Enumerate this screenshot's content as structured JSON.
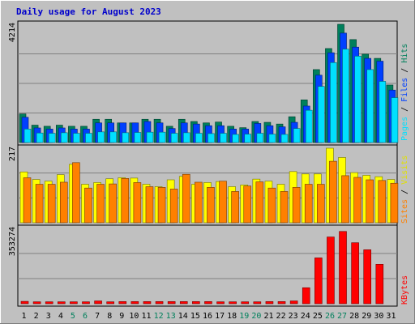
{
  "colors": {
    "background": "#c0c0c0",
    "title": "#0000cc",
    "hits": "#00805c",
    "files": "#0040ff",
    "pages": "#00e0ff",
    "visits": "#ffff00",
    "sites": "#ff8000",
    "kbytes": "#ff0000",
    "weekday": "#000000",
    "weekend": "#00805c"
  },
  "chart_data": {
    "type": "bar",
    "title": "Daily usage for August 2023",
    "categories": [
      "1",
      "2",
      "3",
      "4",
      "5",
      "6",
      "7",
      "8",
      "9",
      "10",
      "11",
      "12",
      "13",
      "14",
      "15",
      "16",
      "17",
      "18",
      "19",
      "20",
      "21",
      "22",
      "23",
      "24",
      "25",
      "26",
      "27",
      "28",
      "29",
      "30",
      "31"
    ],
    "weekend_days": [
      "5",
      "6",
      "12",
      "13",
      "19",
      "20",
      "26",
      "27"
    ],
    "panels": [
      {
        "id": "hits-files-pages",
        "max_label": "4214",
        "ylim": [
          0,
          4214
        ],
        "axis_labels": [
          "Pages",
          "Files",
          "Hits"
        ],
        "series": [
          {
            "name": "Hits",
            "values": [
              1020,
              620,
              580,
              620,
              580,
              580,
              830,
              830,
              700,
              700,
              830,
              830,
              580,
              830,
              750,
              700,
              730,
              580,
              530,
              750,
              720,
              660,
              920,
              1520,
              2600,
              3350,
              4214,
              3670,
              3150,
              3000,
              2050
            ]
          },
          {
            "name": "Files",
            "values": [
              900,
              520,
              480,
              520,
              480,
              480,
              700,
              700,
              700,
              700,
              750,
              700,
              500,
              700,
              660,
              600,
              600,
              480,
              480,
              680,
              600,
              560,
              720,
              1300,
              2400,
              3200,
              3900,
              3400,
              3000,
              2900,
              1870
            ]
          },
          {
            "name": "Pages",
            "values": [
              480,
              340,
              330,
              350,
              330,
              330,
              380,
              380,
              350,
              360,
              370,
              370,
              330,
              350,
              330,
              320,
              330,
              290,
              300,
              330,
              300,
              290,
              500,
              1150,
              2000,
              2850,
              3330,
              3080,
              2600,
              2180,
              1600
            ]
          }
        ]
      },
      {
        "id": "visits-sites",
        "max_label": "217",
        "ylim": [
          0,
          217
        ],
        "axis_labels": [
          "Sites",
          "Visits"
        ],
        "series": [
          {
            "name": "Visits",
            "values": [
              148,
              126,
              121,
              140,
              170,
              112,
              117,
              128,
              131,
              130,
              112,
              105,
              125,
              135,
              112,
              117,
              120,
              105,
              110,
              127,
              121,
              112,
              149,
              142,
              142,
              217,
              190,
              146,
              138,
              134,
              126
            ]
          },
          {
            "name": "Sites",
            "values": [
              131,
              112,
              112,
              118,
              175,
              101,
              112,
              113,
              129,
              117,
              105,
              103,
              98,
              141,
              118,
              103,
              121,
              91,
              107,
              119,
              101,
              91,
              103,
              112,
              112,
              179,
              137,
              132,
              125,
              123,
              115
            ]
          }
        ]
      },
      {
        "id": "kbytes",
        "max_label": "353274",
        "ylim": [
          0,
          353274
        ],
        "axis_labels": [
          "KBytes"
        ],
        "series": [
          {
            "name": "KBytes",
            "values": [
              11000,
              9000,
              9000,
              9000,
              9000,
              9000,
              13000,
              9000,
              10000,
              10000,
              10000,
              10000,
              10000,
              10000,
              10000,
              10000,
              9000,
              9000,
              9000,
              9000,
              10000,
              10000,
              13000,
              75000,
              215000,
              313000,
              339000,
              286000,
              253000,
              185000,
              0
            ]
          }
        ]
      }
    ]
  }
}
